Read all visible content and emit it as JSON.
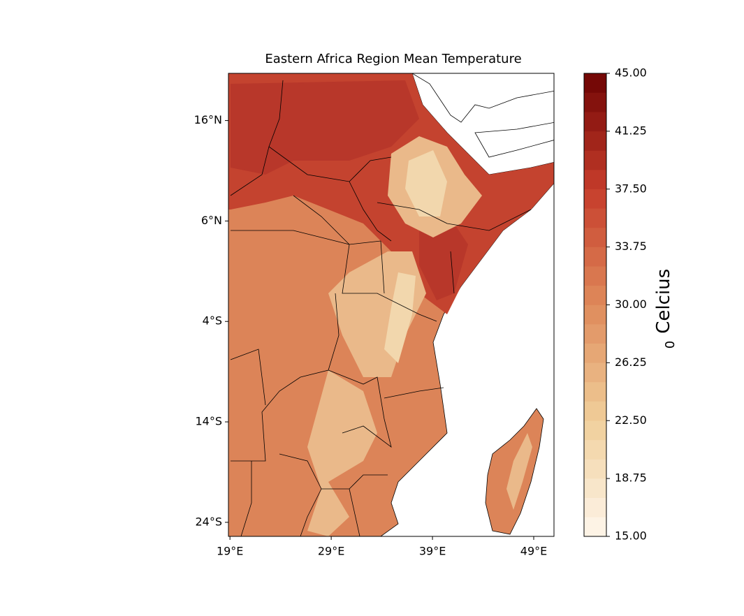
{
  "chart_data": {
    "type": "contour_map",
    "title": "Eastern Africa Region Mean Temperature",
    "xlim": [
      18.85,
      51
    ],
    "ylim": [
      -25.4,
      20.7
    ],
    "xticks": [
      {
        "value": 19,
        "label": "19°E"
      },
      {
        "value": 29,
        "label": "29°E"
      },
      {
        "value": 39,
        "label": "39°E"
      },
      {
        "value": 49,
        "label": "49°E"
      }
    ],
    "yticks": [
      {
        "value": 16,
        "label": "16°N"
      },
      {
        "value": 6,
        "label": "6°N"
      },
      {
        "value": -4,
        "label": "4°S"
      },
      {
        "value": -14,
        "label": "14°S"
      },
      {
        "value": -24,
        "label": "24°S"
      }
    ],
    "colorbar": {
      "label": "Celcius",
      "label_superscript": "0",
      "clim": [
        15,
        45
      ],
      "colors": [
        "#fef6ec",
        "#f0cf9a",
        "#df8a5b",
        "#c63d2b",
        "#6e0303"
      ],
      "levels": [
        15,
        16.25,
        17.5,
        18.75,
        20,
        21.25,
        22.5,
        23.75,
        25,
        26.25,
        27.5,
        28.75,
        30,
        31.25,
        32.5,
        33.75,
        35,
        36.25,
        37.5,
        38.75,
        40,
        41.25,
        42.5,
        43.75,
        45
      ],
      "ticks": [
        {
          "value": 15,
          "label": "15.00"
        },
        {
          "value": 18.75,
          "label": "18.75"
        },
        {
          "value": 22.5,
          "label": "22.50"
        },
        {
          "value": 26.25,
          "label": "26.25"
        },
        {
          "value": 30,
          "label": "30.00"
        },
        {
          "value": 33.75,
          "label": "33.75"
        },
        {
          "value": 37.5,
          "label": "37.50"
        },
        {
          "value": 41.25,
          "label": "41.25"
        },
        {
          "value": 45,
          "label": "45.00"
        }
      ]
    }
  }
}
